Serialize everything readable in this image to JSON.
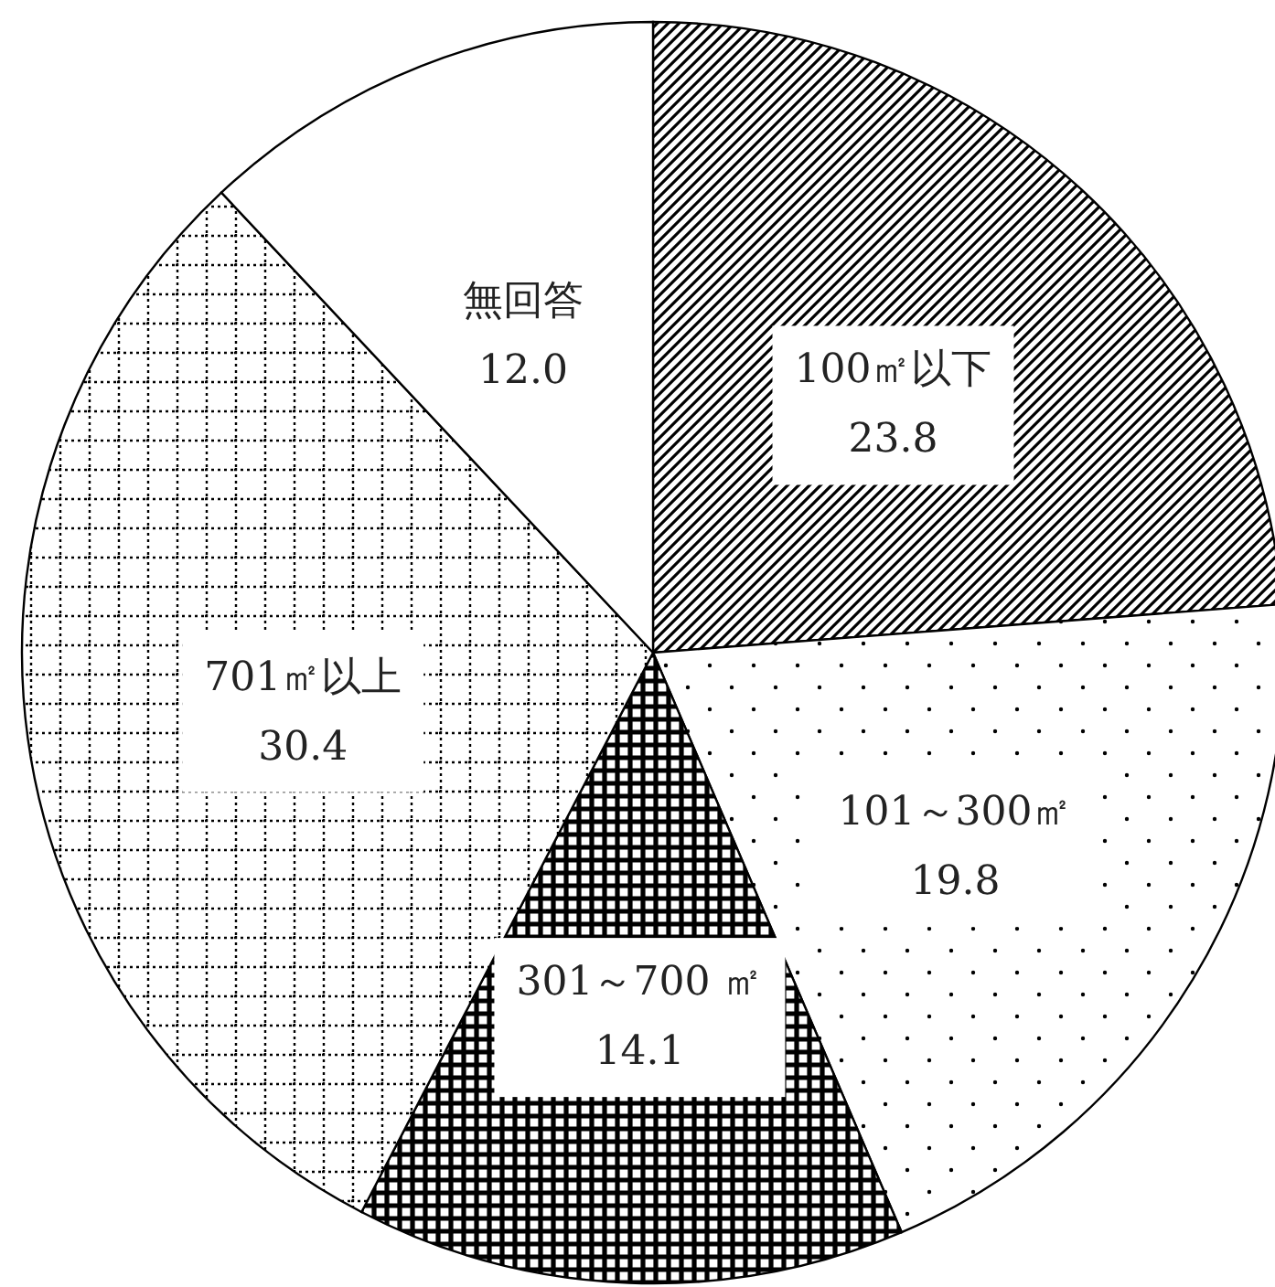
{
  "chart_data": {
    "type": "pie",
    "categories": [
      "100㎡以下",
      "101～300㎡",
      "301～700 ㎡",
      "701㎡以上",
      "無回答"
    ],
    "values": [
      23.8,
      19.8,
      14.1,
      30.4,
      12.0
    ],
    "value_labels": [
      "23.8",
      "19.8",
      "14.1",
      "30.4",
      "12.0"
    ]
  }
}
